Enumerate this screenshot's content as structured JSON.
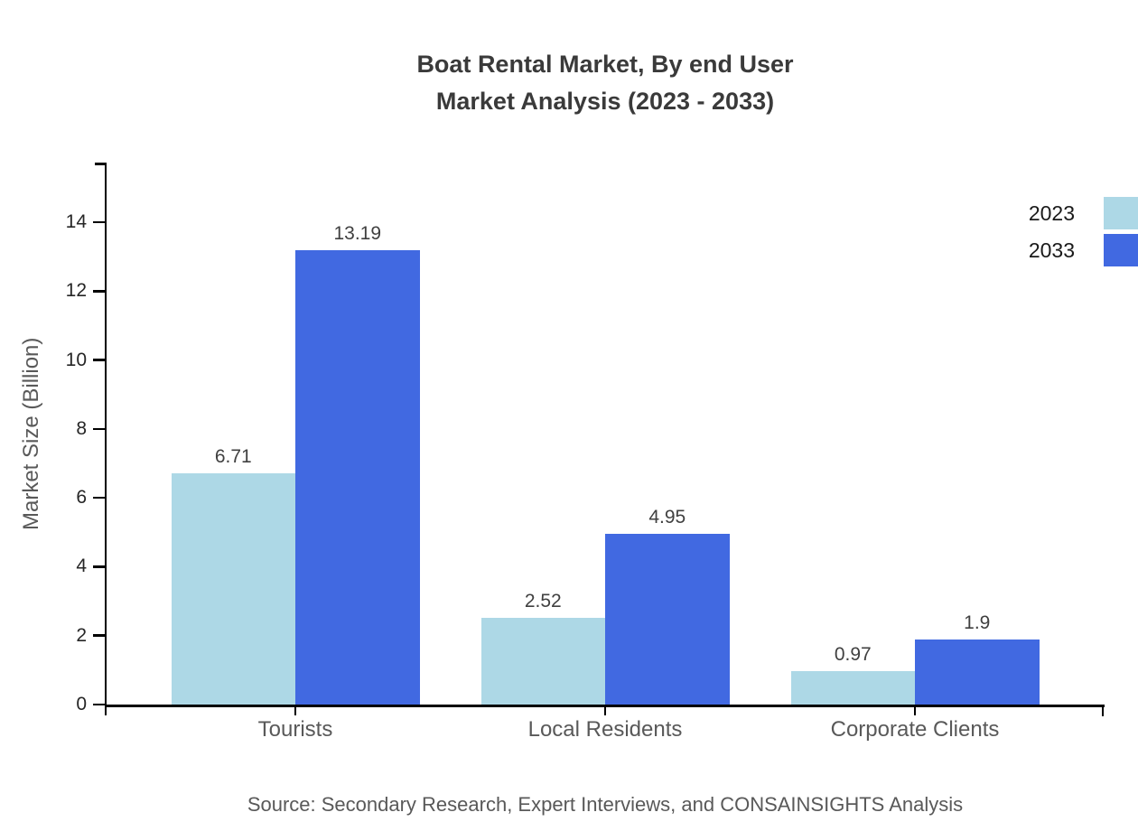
{
  "title": {
    "line1": "Boat Rental Market, By end User",
    "line2": "Market Analysis (2023 - 2033)"
  },
  "legend": {
    "items": [
      {
        "label": "2023",
        "color": "#ADD8E6"
      },
      {
        "label": "2033",
        "color": "#4169E1"
      }
    ]
  },
  "axes": {
    "y_label": "Market Size (Billion)"
  },
  "source": "Source: Secondary Research, Expert Interviews, and CONSAINSIGHTS Analysis",
  "chart_data": {
    "type": "bar",
    "title": "Boat Rental Market, By end User Market Analysis (2023 - 2033)",
    "categories": [
      "Tourists",
      "Local Residents",
      "Corporate Clients"
    ],
    "series": [
      {
        "name": "2023",
        "color": "#ADD8E6",
        "values": [
          6.71,
          2.52,
          0.97
        ]
      },
      {
        "name": "2033",
        "color": "#4169E1",
        "values": [
          13.19,
          4.95,
          1.9
        ]
      }
    ],
    "value_labels": [
      [
        "6.71",
        "2.52",
        "0.97"
      ],
      [
        "13.19",
        "4.95",
        "1.9"
      ]
    ],
    "xlabel": "",
    "ylabel": "Market Size (Billion)",
    "ylim": [
      0,
      15.76
    ],
    "yticks": [
      0,
      2,
      4,
      6,
      8,
      10,
      12,
      14
    ],
    "grid": false,
    "legend_position": "top-right"
  }
}
